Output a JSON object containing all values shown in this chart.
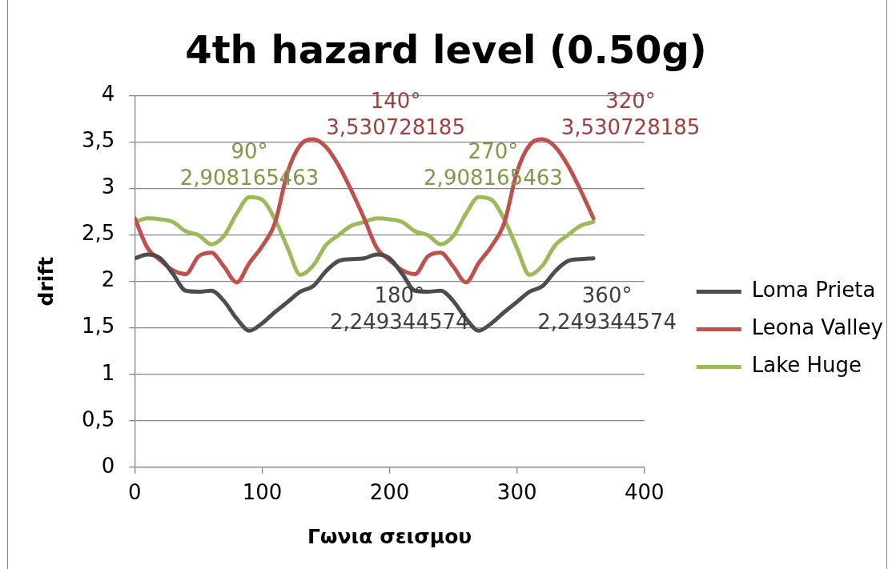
{
  "chart_data": {
    "type": "line",
    "title": "4th hazard level (0.50g)",
    "xlabel": "Γωνια σεισμου",
    "ylabel": "drift",
    "x": [
      0,
      10,
      20,
      30,
      40,
      50,
      60,
      70,
      80,
      90,
      100,
      110,
      120,
      130,
      140,
      150,
      160,
      170,
      180,
      190,
      200,
      210,
      220,
      230,
      240,
      250,
      260,
      270,
      280,
      290,
      300,
      310,
      320,
      330,
      340,
      350,
      360
    ],
    "series": [
      {
        "name": "Loma Prieta",
        "color": "#4d4d4d",
        "values": [
          2.25,
          2.29,
          2.25,
          2.08,
          1.9,
          1.89,
          1.9,
          1.79,
          1.6,
          1.47,
          1.55,
          1.67,
          1.78,
          1.89,
          1.95,
          2.11,
          2.22,
          2.24,
          2.249344574,
          2.29,
          2.25,
          2.08,
          1.9,
          1.89,
          1.9,
          1.79,
          1.6,
          1.47,
          1.55,
          1.67,
          1.78,
          1.89,
          1.95,
          2.11,
          2.22,
          2.24,
          2.249344574
        ]
      },
      {
        "name": "Leona Valley",
        "color": "#c0504d",
        "values": [
          2.68,
          2.36,
          2.23,
          2.12,
          2.08,
          2.27,
          2.31,
          2.16,
          1.99,
          2.2,
          2.38,
          2.63,
          3.18,
          3.47,
          3.530728185,
          3.45,
          3.25,
          2.98,
          2.68,
          2.36,
          2.23,
          2.12,
          2.08,
          2.27,
          2.31,
          2.16,
          1.99,
          2.2,
          2.38,
          2.63,
          3.18,
          3.47,
          3.530728185,
          3.45,
          3.25,
          2.98,
          2.68
        ]
      },
      {
        "name": "Lake Huge",
        "color": "#9bbb59",
        "values": [
          2.64,
          2.68,
          2.67,
          2.64,
          2.54,
          2.5,
          2.4,
          2.49,
          2.73,
          2.908165463,
          2.88,
          2.67,
          2.36,
          2.07,
          2.17,
          2.39,
          2.5,
          2.6,
          2.64,
          2.68,
          2.67,
          2.64,
          2.54,
          2.5,
          2.4,
          2.49,
          2.73,
          2.908165463,
          2.88,
          2.67,
          2.36,
          2.07,
          2.17,
          2.39,
          2.5,
          2.6,
          2.64
        ]
      }
    ],
    "xlim": [
      0,
      400
    ],
    "xticks": [
      0,
      100,
      200,
      300,
      400
    ],
    "ylim": [
      0,
      4
    ],
    "yticks": [
      0,
      {
        "value": 0.5,
        "label": "0,5"
      },
      1,
      {
        "value": 1.5,
        "label": "1,5"
      },
      2,
      {
        "value": 2.5,
        "label": "2,5"
      },
      3,
      {
        "value": 3.5,
        "label": "3,5"
      },
      4
    ],
    "grid": "y",
    "legend": "right",
    "annotations": [
      {
        "text": "90°\n2,908165463",
        "x": 90,
        "y": 2.908165463
      },
      {
        "text": "140°\n3,530728185",
        "x": 140,
        "y": 3.530728185
      },
      {
        "text": "180°\n2,249344574",
        "x": 180,
        "y": 2.249344574
      },
      {
        "text": "270°\n2,908165463",
        "x": 270,
        "y": 2.908165463
      },
      {
        "text": "320°\n3,530728185",
        "x": 320,
        "y": 3.530728185
      },
      {
        "text": "360°\n2,249344574",
        "x": 360,
        "y": 2.249344574
      }
    ]
  }
}
